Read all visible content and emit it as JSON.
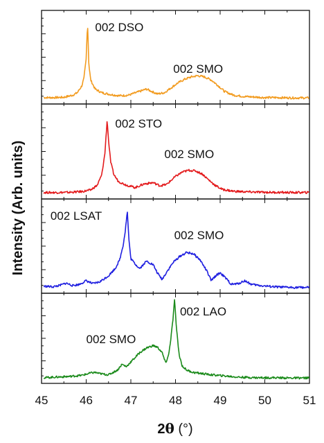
{
  "chart_data": {
    "type": "line",
    "ylabel": "Intensity (Arb. units)",
    "xlabel_main": "2",
    "xlabel_symbol": "θ",
    "xlabel_unit": " (°)",
    "xlim": [
      45,
      51
    ],
    "x_ticks": [
      "45",
      "46",
      "47",
      "48",
      "49",
      "50",
      "51"
    ],
    "colors": {
      "dso": "#f29b1f",
      "sto": "#e31a1c",
      "lsat": "#1f1fe0",
      "lao": "#1a8a1a"
    },
    "panels": [
      {
        "key": "dso",
        "annotations": [
          "002 DSO",
          "002 SMO"
        ],
        "series": {
          "x": [
            45.05,
            45.3,
            45.5,
            45.7,
            45.8,
            45.9,
            45.95,
            46.0,
            46.03,
            46.06,
            46.1,
            46.2,
            46.35,
            46.55,
            46.75,
            46.95,
            47.15,
            47.35,
            47.5,
            47.6,
            47.75,
            47.9,
            48.05,
            48.2,
            48.35,
            48.5,
            48.65,
            48.8,
            48.95,
            49.1,
            49.3,
            49.5,
            49.75,
            50.0,
            50.3,
            50.6,
            50.9,
            51.0
          ],
          "y": [
            0.6,
            0.6,
            0.65,
            1.0,
            1.4,
            2.5,
            3.8,
            7.0,
            13.0,
            6.0,
            3.5,
            2.0,
            1.4,
            1.1,
            0.9,
            1.0,
            1.5,
            2.0,
            1.5,
            1.2,
            1.4,
            2.2,
            3.0,
            3.6,
            4.0,
            4.2,
            4.0,
            3.5,
            2.6,
            1.6,
            1.0,
            0.8,
            0.7,
            0.6,
            0.6,
            0.55,
            0.55,
            0.55
          ]
        }
      },
      {
        "key": "sto",
        "annotations": [
          "002 STO",
          "002 SMO"
        ],
        "series": {
          "x": [
            45.05,
            45.3,
            45.6,
            45.9,
            46.1,
            46.25,
            46.35,
            46.42,
            46.47,
            46.5,
            46.55,
            46.62,
            46.72,
            46.9,
            47.1,
            47.3,
            47.5,
            47.65,
            47.8,
            48.0,
            48.15,
            48.3,
            48.45,
            48.6,
            48.75,
            48.9,
            49.05,
            49.3,
            49.6,
            49.9,
            50.2,
            50.5,
            50.8,
            51.0
          ],
          "y": [
            0.6,
            0.6,
            0.62,
            0.75,
            1.0,
            1.8,
            3.5,
            7.0,
            12.5,
            9.0,
            5.5,
            3.5,
            2.4,
            1.8,
            1.4,
            2.0,
            2.2,
            1.7,
            1.9,
            3.2,
            3.9,
            4.2,
            4.1,
            3.6,
            2.6,
            1.7,
            1.1,
            0.8,
            0.7,
            0.65,
            0.62,
            0.6,
            0.6,
            0.6
          ]
        }
      },
      {
        "key": "lsat",
        "annotations": [
          "002 LSAT",
          "002 SMO"
        ],
        "series": {
          "x": [
            45.05,
            45.25,
            45.4,
            45.55,
            45.7,
            45.85,
            46.0,
            46.15,
            46.3,
            46.5,
            46.65,
            46.75,
            46.83,
            46.88,
            46.92,
            46.96,
            47.0,
            47.1,
            47.2,
            47.35,
            47.5,
            47.6,
            47.7,
            47.8,
            47.95,
            48.1,
            48.25,
            48.4,
            48.55,
            48.7,
            48.8,
            48.9,
            49.0,
            49.1,
            49.25,
            49.4,
            49.55,
            49.7,
            49.9,
            50.2,
            50.5,
            50.8,
            51.0
          ],
          "y": [
            0.7,
            0.6,
            0.8,
            1.2,
            0.8,
            1.0,
            1.6,
            1.1,
            1.4,
            2.4,
            3.6,
            5.0,
            7.5,
            10.0,
            13.0,
            8.0,
            5.2,
            4.3,
            3.6,
            4.8,
            4.2,
            2.8,
            1.8,
            3.0,
            4.6,
            5.6,
            6.2,
            6.0,
            5.0,
            3.2,
            1.6,
            2.4,
            2.9,
            2.2,
            1.0,
            1.1,
            1.6,
            1.0,
            0.8,
            0.6,
            0.5,
            0.5,
            0.5
          ]
        }
      },
      {
        "key": "lao",
        "annotations": [
          "002 LAO",
          "002 SMO"
        ],
        "series": {
          "x": [
            45.05,
            45.3,
            45.6,
            45.9,
            46.1,
            46.2,
            46.3,
            46.5,
            46.7,
            46.8,
            46.9,
            47.05,
            47.2,
            47.35,
            47.5,
            47.6,
            47.7,
            47.78,
            47.85,
            47.9,
            47.95,
            47.98,
            48.02,
            48.08,
            48.15,
            48.25,
            48.4,
            48.6,
            48.8,
            49.1,
            49.4,
            49.8,
            50.2,
            50.6,
            51.0
          ],
          "y": [
            0.5,
            0.6,
            0.7,
            0.9,
            1.3,
            1.4,
            1.2,
            1.0,
            1.8,
            2.8,
            2.4,
            3.6,
            4.8,
            5.6,
            6.0,
            5.7,
            4.8,
            3.0,
            4.5,
            7.5,
            11.0,
            14.0,
            9.0,
            4.5,
            2.5,
            1.8,
            1.4,
            1.2,
            1.0,
            0.8,
            0.6,
            0.5,
            0.5,
            0.45,
            0.45
          ]
        }
      }
    ]
  }
}
